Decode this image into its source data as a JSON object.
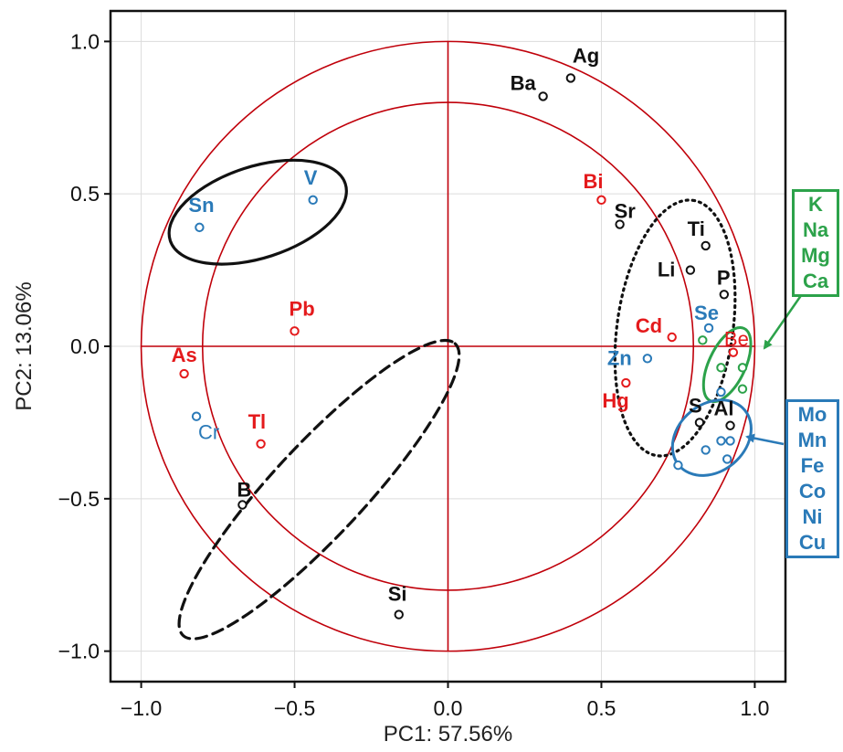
{
  "chart_data": {
    "type": "scatter",
    "title": "",
    "xlabel": "PC1: 57.56%",
    "ylabel": "PC2: 13.06%",
    "xlim": [
      -1.1,
      1.1
    ],
    "ylim": [
      -1.1,
      1.1
    ],
    "x_ticks": [
      -1.0,
      -0.5,
      0.0,
      0.5,
      1.0
    ],
    "y_ticks": [
      -1.0,
      -0.5,
      0.0,
      0.5,
      1.0
    ],
    "x_tick_labels": [
      "−1.0",
      "−0.5",
      "0.0",
      "0.5",
      "1.0"
    ],
    "y_tick_labels": [
      "−1.0",
      "−0.5",
      "0.0",
      "0.5",
      "1.0"
    ],
    "grid": true,
    "reference_circles": [
      1.0,
      0.8
    ],
    "colors": {
      "black": "#111111",
      "red": "#e41a1c",
      "blue": "#2a7ab8",
      "green": "#2ca24a",
      "axis_line": "#c0000a"
    },
    "points": [
      {
        "label": "Ag",
        "x": 0.4,
        "y": 0.88,
        "color": "black"
      },
      {
        "label": "Ba",
        "x": 0.31,
        "y": 0.82,
        "color": "black"
      },
      {
        "label": "Bi",
        "x": 0.5,
        "y": 0.48,
        "color": "red"
      },
      {
        "label": "Sr",
        "x": 0.56,
        "y": 0.4,
        "color": "black"
      },
      {
        "label": "Ti",
        "x": 0.84,
        "y": 0.33,
        "color": "black"
      },
      {
        "label": "Li",
        "x": 0.79,
        "y": 0.25,
        "color": "black"
      },
      {
        "label": "P",
        "x": 0.9,
        "y": 0.17,
        "color": "black"
      },
      {
        "label": "Se",
        "x": 0.85,
        "y": 0.06,
        "color": "blue"
      },
      {
        "label": "Cd",
        "x": 0.73,
        "y": 0.03,
        "color": "red"
      },
      {
        "label": "Be",
        "x": 0.93,
        "y": -0.02,
        "color": "red",
        "light": true
      },
      {
        "label": "Zn",
        "x": 0.65,
        "y": -0.04,
        "color": "blue"
      },
      {
        "label": "Hg",
        "x": 0.58,
        "y": -0.12,
        "color": "red"
      },
      {
        "label": "S",
        "x": 0.82,
        "y": -0.25,
        "color": "black"
      },
      {
        "label": "Al",
        "x": 0.92,
        "y": -0.26,
        "color": "black"
      },
      {
        "label": "Sn",
        "x": -0.81,
        "y": 0.39,
        "color": "blue"
      },
      {
        "label": "V",
        "x": -0.44,
        "y": 0.48,
        "color": "blue"
      },
      {
        "label": "Pb",
        "x": -0.5,
        "y": 0.05,
        "color": "red"
      },
      {
        "label": "As",
        "x": -0.86,
        "y": -0.09,
        "color": "red"
      },
      {
        "label": "Cr",
        "x": -0.82,
        "y": -0.23,
        "color": "blue",
        "light": true
      },
      {
        "label": "Tl",
        "x": -0.61,
        "y": -0.32,
        "color": "red"
      },
      {
        "label": "B",
        "x": -0.67,
        "y": -0.52,
        "color": "black"
      },
      {
        "label": "Si",
        "x": -0.16,
        "y": -0.88,
        "color": "black"
      },
      {
        "label": "",
        "x": 0.83,
        "y": 0.02,
        "color": "green"
      },
      {
        "label": "",
        "x": 0.89,
        "y": -0.07,
        "color": "green"
      },
      {
        "label": "",
        "x": 0.96,
        "y": -0.07,
        "color": "green"
      },
      {
        "label": "",
        "x": 0.96,
        "y": -0.14,
        "color": "green"
      },
      {
        "label": "",
        "x": 0.75,
        "y": -0.39,
        "color": "blue"
      },
      {
        "label": "",
        "x": 0.84,
        "y": -0.34,
        "color": "blue"
      },
      {
        "label": "",
        "x": 0.89,
        "y": -0.31,
        "color": "blue"
      },
      {
        "label": "",
        "x": 0.92,
        "y": -0.31,
        "color": "blue"
      },
      {
        "label": "",
        "x": 0.91,
        "y": -0.37,
        "color": "blue"
      },
      {
        "label": "",
        "x": 0.89,
        "y": -0.15,
        "color": "blue"
      }
    ],
    "groups": [
      {
        "color": "green",
        "members": [
          "K",
          "Na",
          "Mg",
          "Ca"
        ]
      },
      {
        "color": "blue",
        "members": [
          "Mo",
          "Mn",
          "Fe",
          "Co",
          "Ni",
          "Cu"
        ]
      }
    ]
  }
}
